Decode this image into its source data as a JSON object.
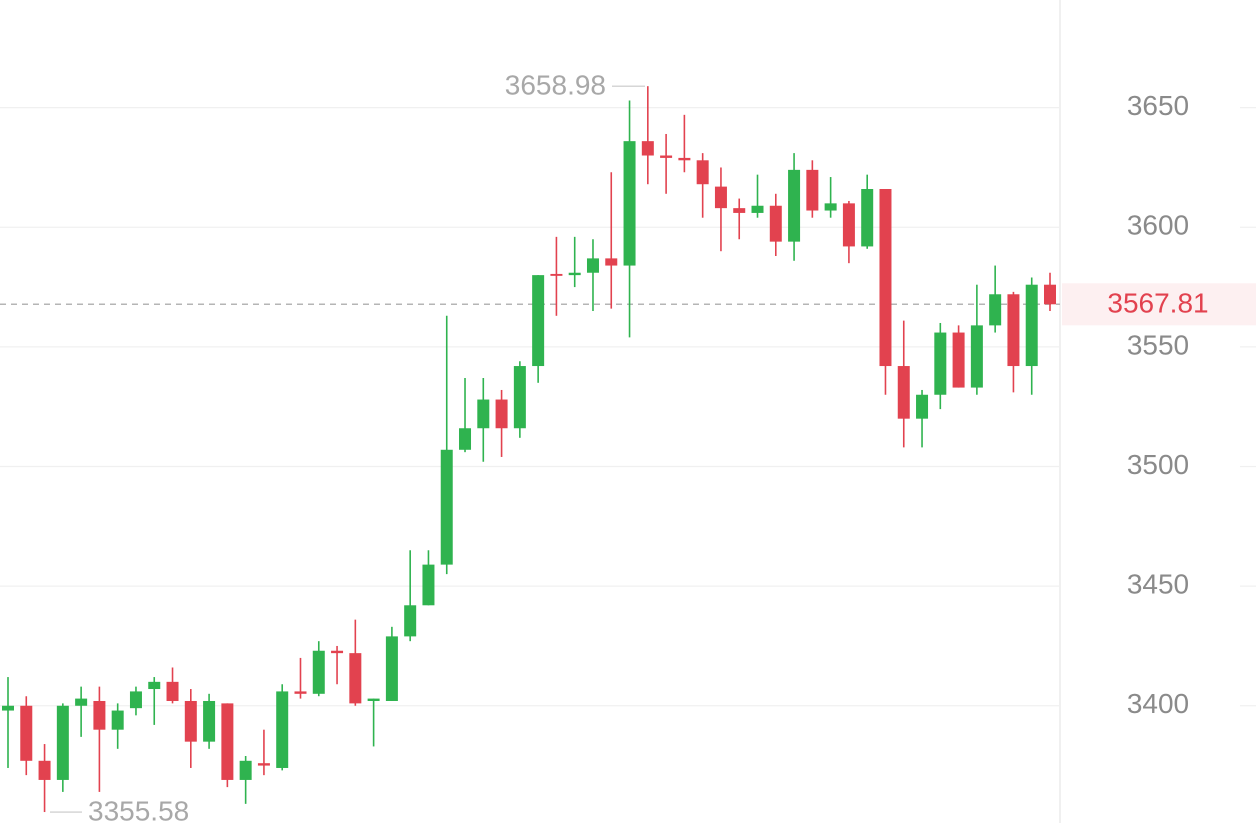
{
  "chart_data": {
    "type": "candlestick",
    "up_color": "#2fb34f",
    "down_color": "#e2424f",
    "ylim": [
      3351,
      3695
    ],
    "yticks": [
      3400,
      3450,
      3500,
      3550,
      3600,
      3650
    ],
    "grid": true,
    "open": [
      3398,
      3400,
      3377,
      3369,
      3400,
      3402,
      3390,
      3399,
      3407,
      3410,
      3402,
      3385,
      3401,
      3369,
      3376,
      3374,
      3406,
      3405,
      3423,
      3422,
      3402,
      3402,
      3429,
      3442,
      3459,
      3507,
      3516,
      3528,
      3516,
      3542,
      3580.5,
      3580,
      3581,
      3587,
      3584,
      3636,
      3630,
      3629,
      3628,
      3617,
      3608,
      3606,
      3609,
      3594,
      3624,
      3607,
      3610,
      3592,
      3616,
      3542,
      3520,
      3530,
      3556,
      3533,
      3559,
      3572,
      3542,
      3576
    ],
    "high": [
      3412,
      3404,
      3384,
      3401,
      3408,
      3408,
      3401,
      3408,
      3412,
      3416,
      3407,
      3405,
      3401,
      3379,
      3390,
      3409,
      3420,
      3427,
      3425,
      3436,
      3403,
      3433,
      3465,
      3465,
      3563,
      3537,
      3537,
      3532,
      3544,
      3580,
      3596,
      3596,
      3595,
      3623,
      3653,
      3658.98,
      3639,
      3647,
      3631,
      3625,
      3612,
      3622,
      3614,
      3631,
      3628,
      3621,
      3611,
      3622,
      3616,
      3561,
      3532,
      3560,
      3559,
      3576,
      3584,
      3573,
      3579,
      3581
    ],
    "low": [
      3374,
      3371,
      3355.58,
      3364,
      3387,
      3364,
      3382,
      3396,
      3392,
      3401,
      3374,
      3382,
      3366,
      3359,
      3371,
      3373,
      3403,
      3404,
      3409,
      3400,
      3383,
      3402,
      3427,
      3442,
      3455,
      3506,
      3502,
      3504,
      3512,
      3535,
      3563,
      3575,
      3565,
      3566,
      3554,
      3618,
      3614,
      3623,
      3604,
      3590,
      3595,
      3604,
      3588,
      3586,
      3604,
      3604,
      3585,
      3591,
      3530,
      3508,
      3508,
      3524,
      3533,
      3530,
      3556,
      3531,
      3530,
      3565
    ],
    "close": [
      3400,
      3377,
      3369,
      3400,
      3403,
      3390,
      3398,
      3406,
      3410,
      3402,
      3385,
      3402,
      3369,
      3377,
      3375,
      3406,
      3405,
      3423,
      3422,
      3401,
      3403,
      3429,
      3442,
      3459,
      3507,
      3516,
      3528,
      3516,
      3542,
      3580,
      3579.7,
      3581,
      3587,
      3584,
      3636,
      3630,
      3629,
      3628,
      3618,
      3608,
      3606,
      3609,
      3594,
      3624,
      3607,
      3610,
      3592,
      3616,
      3542,
      3520,
      3530,
      3556,
      3533,
      3559,
      3572,
      3542,
      3576,
      3567.81
    ],
    "max_label": 3658.98,
    "min_label": 3355.58,
    "last_price": 3567.81
  }
}
